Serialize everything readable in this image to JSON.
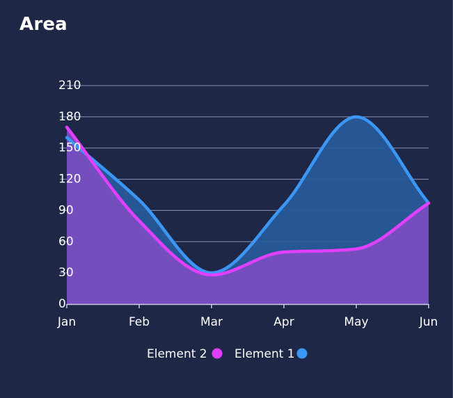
{
  "card": {
    "title": "Area"
  },
  "colors": {
    "background": "#1f2746",
    "grid": "#8a93b8",
    "text": "#ffffff",
    "element1_line": "#3b97f3",
    "element1_fill": "#28599a",
    "element2_line": "#e040fb",
    "element2_fill": "#7a4dbf"
  },
  "chart_data": {
    "type": "area",
    "title": "Area",
    "categories": [
      "Jan",
      "Feb",
      "Mar",
      "Apr",
      "May",
      "Jun"
    ],
    "ylim": [
      0,
      210
    ],
    "yticks": [
      0,
      30,
      60,
      90,
      120,
      150,
      180,
      210
    ],
    "grid": true,
    "legend_position": "bottom",
    "series": [
      {
        "name": "Element 1",
        "values": [
          160,
          100,
          30,
          95,
          180,
          97
        ]
      },
      {
        "name": "Element 2",
        "values": [
          170,
          80,
          28,
          50,
          53,
          97
        ]
      }
    ],
    "legend": [
      {
        "label": "Element 2",
        "series_index": 1
      },
      {
        "label": "Element 1",
        "series_index": 0
      }
    ]
  }
}
